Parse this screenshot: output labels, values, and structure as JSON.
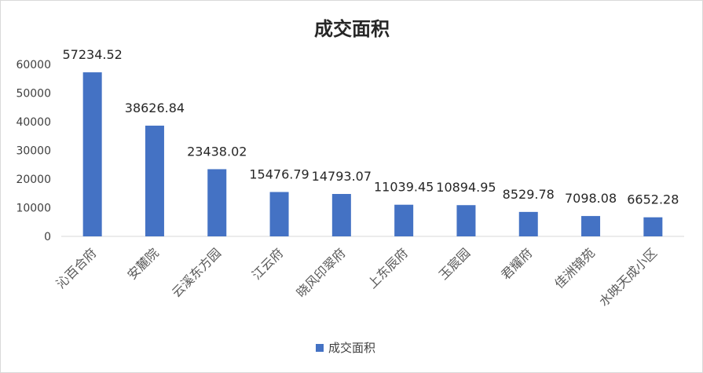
{
  "chart_data": {
    "type": "bar",
    "title": "成交面积",
    "categories": [
      "沁百合府",
      "安麓院",
      "云溪东方园",
      "江云府",
      "晓风印翠府",
      "上东辰府",
      "玉宸园",
      "君耀府",
      "佳洲锦苑",
      "水映天成小区"
    ],
    "series": [
      {
        "name": "成交面积",
        "values": [
          57234.52,
          38626.84,
          23438.02,
          15476.79,
          14793.07,
          11039.45,
          10894.95,
          8529.78,
          7098.08,
          6652.28
        ]
      }
    ],
    "data_labels": [
      "57234.52",
      "38626.84",
      "23438.02",
      "15476.79",
      "14793.07",
      "11039.45",
      "10894.95",
      "8529.78",
      "7098.08",
      "6652.28"
    ],
    "ylim": [
      0,
      60000
    ],
    "yticks": [
      0,
      10000,
      20000,
      30000,
      40000,
      50000,
      60000
    ],
    "ytick_labels": [
      "0",
      "10000",
      "20000",
      "30000",
      "40000",
      "50000",
      "60000"
    ],
    "grid": false,
    "legend_position": "bottom",
    "bar_color": "#4472C4"
  }
}
